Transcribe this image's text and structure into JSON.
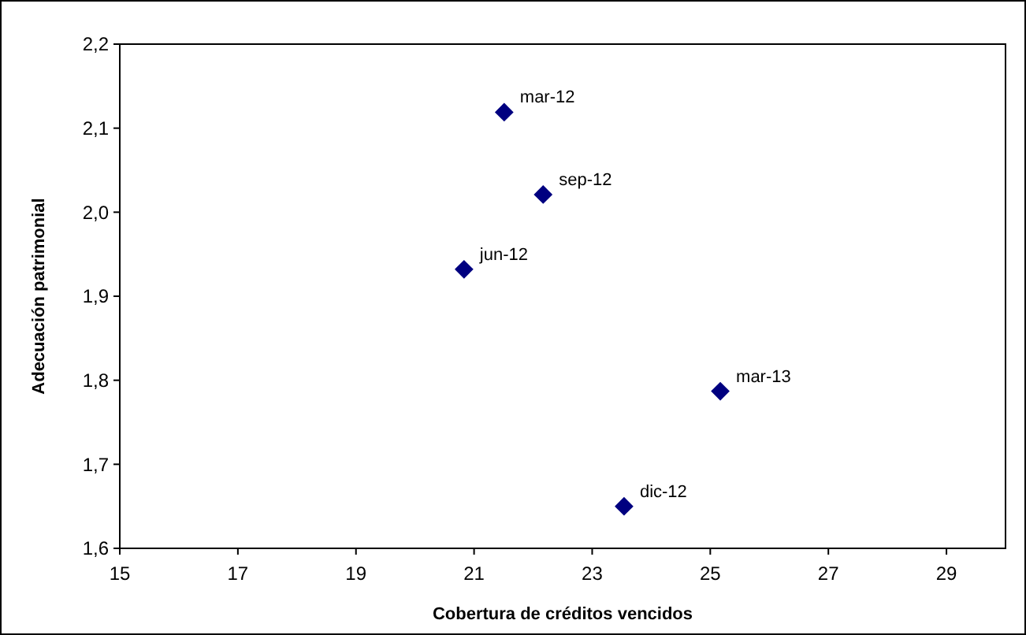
{
  "chart_data": {
    "type": "scatter",
    "xlabel": "Cobertura de créditos vencidos",
    "ylabel": "Adecuación patrimonial",
    "x": [
      21.51,
      20.83,
      22.17,
      23.54,
      25.17
    ],
    "series": [
      {
        "color": "#000080",
        "values": [
          2.119,
          1.932,
          2.021,
          1.65,
          1.787
        ]
      }
    ],
    "xlim": [
      15,
      30
    ],
    "xticks": [
      15,
      17,
      19,
      21,
      23,
      25,
      27,
      29
    ],
    "ylim": [
      1.6,
      2.2
    ],
    "yticks": [
      {
        "value": 1.6,
        "label": "1,6"
      },
      {
        "value": 1.7,
        "label": "1,7"
      },
      {
        "value": 1.8,
        "label": "1,8"
      },
      {
        "value": 1.9,
        "label": "1,9"
      },
      {
        "value": 2.0,
        "label": "2,0"
      },
      {
        "value": 2.1,
        "label": "2,1"
      },
      {
        "value": 2.2,
        "label": "2,2"
      }
    ],
    "marker": "diamond",
    "grid": false,
    "annotations": [
      {
        "text": "mar-12",
        "x": 21.51,
        "y": 2.119
      },
      {
        "text": "jun-12",
        "x": 20.83,
        "y": 1.932
      },
      {
        "text": "sep-12",
        "x": 22.17,
        "y": 2.021
      },
      {
        "text": "dic-12",
        "x": 23.54,
        "y": 1.65
      },
      {
        "text": "mar-13",
        "x": 25.17,
        "y": 1.787
      }
    ]
  }
}
